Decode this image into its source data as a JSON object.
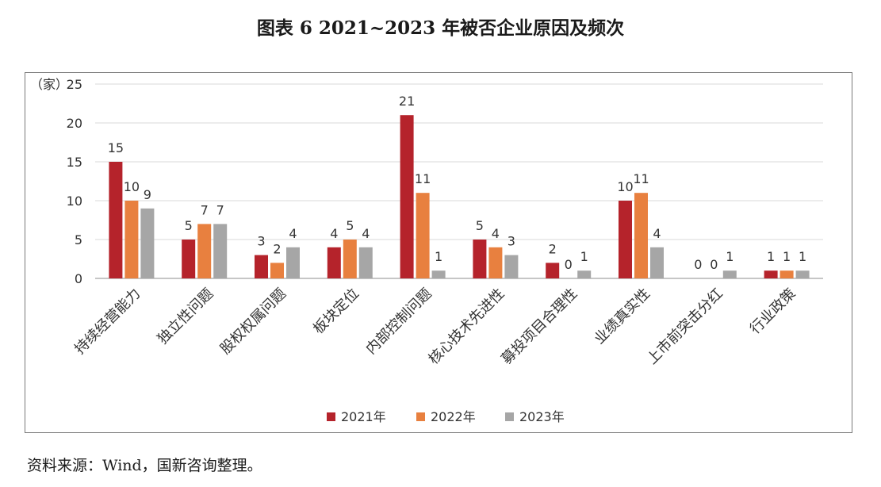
{
  "title": "图表 6  2021~2023 年被否企业原因及频次",
  "source": "资料来源：Wind，国新咨询整理。",
  "chart_data": {
    "type": "bar",
    "ylabel": "（家）",
    "ylim": [
      0,
      25
    ],
    "yticks": [
      0,
      5,
      10,
      15,
      20,
      25
    ],
    "grid": true,
    "legend_position": "bottom",
    "categories": [
      "持续经营能力",
      "独立性问题",
      "股权权属问题",
      "板块定位",
      "内部控制问题",
      "核心技术先进性",
      "募投项目合理性",
      "业绩真实性",
      "上市前突击分红",
      "行业政策"
    ],
    "series": [
      {
        "name": "2021年",
        "color": "#b5232b",
        "values": [
          15,
          5,
          3,
          4,
          21,
          5,
          2,
          10,
          0,
          1
        ]
      },
      {
        "name": "2022年",
        "color": "#e8803f",
        "values": [
          10,
          7,
          2,
          5,
          11,
          4,
          0,
          11,
          0,
          1
        ]
      },
      {
        "name": "2023年",
        "color": "#a6a6a6",
        "values": [
          9,
          7,
          4,
          4,
          1,
          3,
          1,
          4,
          1,
          1
        ]
      }
    ]
  }
}
